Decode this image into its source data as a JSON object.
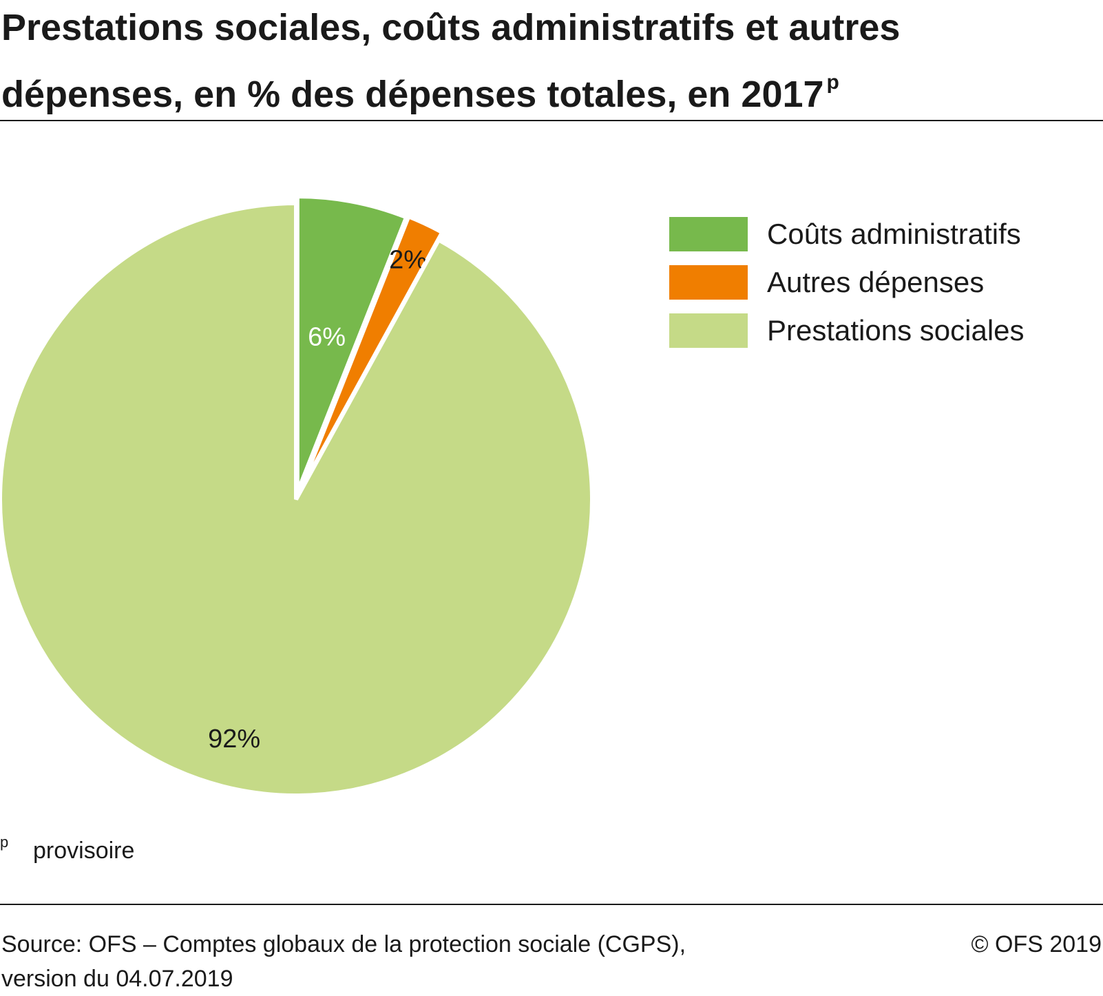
{
  "title": "Prestations sociales, coûts administratifs et autres dépenses, en % des dépenses totales, en 2017",
  "title_superscript": "p",
  "chart_data": {
    "type": "pie",
    "title": "Prestations sociales, coûts administratifs et autres dépenses, en % des dépenses totales, en 2017",
    "slices": [
      {
        "name": "Coûts administratifs",
        "value": 6,
        "label": "6%",
        "color": "#77b94c",
        "label_color": "#ffffff"
      },
      {
        "name": "Autres dépenses",
        "value": 2,
        "label": "2%",
        "color": "#f07e00",
        "label_color": "#1a1a1a"
      },
      {
        "name": "Prestations sociales",
        "value": 92,
        "label": "92%",
        "color": "#c5da87",
        "label_color": "#1a1a1a"
      }
    ],
    "exploded": true,
    "legend_position": "top-right"
  },
  "legend": [
    {
      "label": "Coûts administratifs",
      "color": "#77b94c"
    },
    {
      "label": "Autres dépenses",
      "color": "#f07e00"
    },
    {
      "label": "Prestations sociales",
      "color": "#c5da87"
    }
  ],
  "footnote": {
    "mark": "p",
    "text": "provisoire"
  },
  "source": {
    "line1": "Source: OFS – Comptes globaux de la protection sociale (CGPS),",
    "line2": "version du 04.07.2019"
  },
  "copyright": "© OFS 2019"
}
